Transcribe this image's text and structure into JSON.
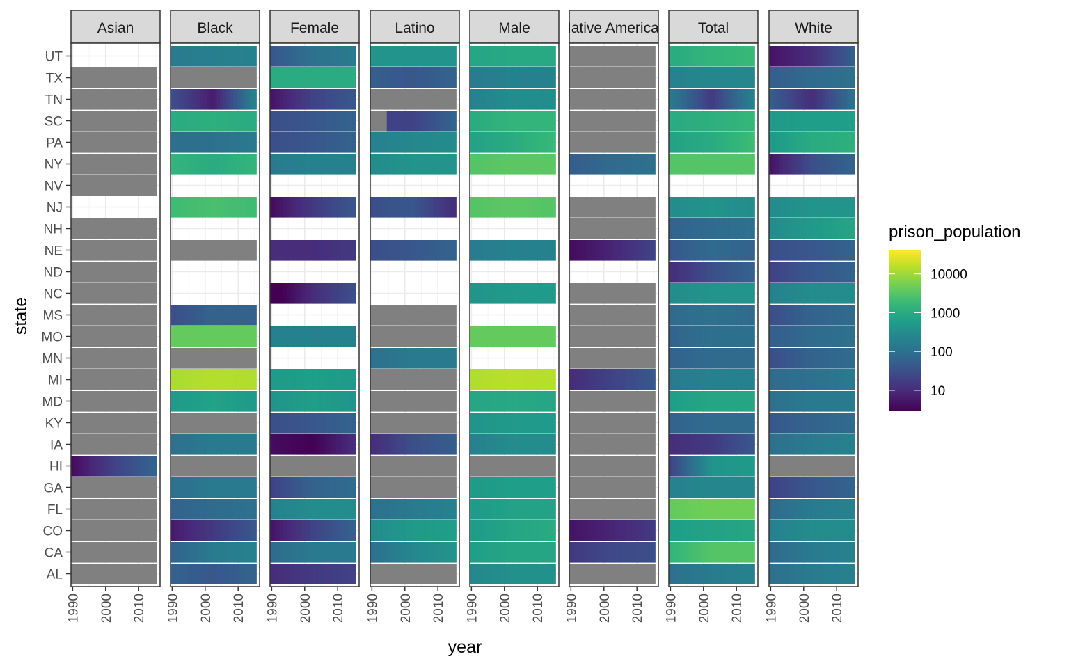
{
  "chart_data": {
    "type": "heatmap",
    "facet_by": "group",
    "x_axis": {
      "label": "year",
      "ticks": [
        1990,
        2000,
        2010
      ],
      "range": [
        1989.5,
        2016.5
      ]
    },
    "y_axis": {
      "label": "state",
      "categories": [
        "UT",
        "TX",
        "TN",
        "SC",
        "PA",
        "NY",
        "NV",
        "NJ",
        "NH",
        "NE",
        "ND",
        "NC",
        "MS",
        "MO",
        "MN",
        "MI",
        "MD",
        "KY",
        "IA",
        "HI",
        "GA",
        "FL",
        "CO",
        "CA",
        "AL"
      ]
    },
    "missing_color": "#808080",
    "grid": true,
    "legend": {
      "title": "prison_population",
      "position": "right",
      "scale": "log10",
      "domain": [
        3,
        40000
      ],
      "ticks": [
        10,
        100,
        1000,
        10000
      ],
      "tick_labels": [
        "10",
        "100",
        "1000",
        "10000"
      ],
      "palette": [
        "#440154",
        "#482878",
        "#3e4989",
        "#31688e",
        "#26828e",
        "#1f9e89",
        "#35b779",
        "#6ece58",
        "#b5de2b",
        "#fde725"
      ]
    },
    "facets": [
      {
        "name": "Asian",
        "year_range": [
          1990,
          2015
        ],
        "rows": {
          "UT": null,
          "TX": "NA",
          "TN": "NA",
          "SC": "NA",
          "PA": "NA",
          "NY": "NA",
          "NV": "NA",
          "NJ": null,
          "NH": "NA",
          "NE": "NA",
          "ND": "NA",
          "NC": "NA",
          "MS": "NA",
          "MO": "NA",
          "MN": "NA",
          "MI": "NA",
          "MD": "NA",
          "KY": "NA",
          "IA": "NA",
          "HI": [
            4,
            20,
            60
          ],
          "GA": "NA",
          "FL": "NA",
          "CO": "NA",
          "CA": "NA",
          "AL": "NA"
        }
      },
      {
        "name": "Black",
        "year_range": [
          1990,
          2015
        ],
        "rows": {
          "UT": [
            150,
            180,
            200
          ],
          "TX": "NA",
          "TN": [
            30,
            6,
            200
          ],
          "SC": [
            1000,
            1200,
            1000
          ],
          "PA": [
            100,
            100,
            150
          ],
          "NY": [
            1500,
            1000,
            1500
          ],
          "NV": null,
          "NJ": [
            2000,
            2500,
            2000
          ],
          "NH": null,
          "NE": "NA",
          "ND": null,
          "NC": null,
          "MS": [
            30,
            60,
            60
          ],
          "MO": [
            4000,
            4000,
            4000
          ],
          "MN": "NA",
          "MI": [
            12000,
            14000,
            13000
          ],
          "MD": [
            500,
            700,
            500
          ],
          "KY": "NA",
          "IA": [
            100,
            150,
            150
          ],
          "HI": "NA",
          "GA": [
            100,
            150,
            150
          ],
          "FL": [
            60,
            80,
            100
          ],
          "CO": [
            6,
            15,
            40
          ],
          "CA": [
            60,
            150,
            200
          ],
          "AL": [
            60,
            40,
            60
          ]
        }
      },
      {
        "name": "Female",
        "year_range": [
          1990,
          2015
        ],
        "rows": {
          "UT": [
            40,
            100,
            150
          ],
          "TX": [
            1000,
            1000,
            1000
          ],
          "TN": [
            5,
            20,
            40
          ],
          "SC": [
            30,
            40,
            60
          ],
          "PA": [
            30,
            40,
            60
          ],
          "NY": [
            150,
            200,
            200
          ],
          "NV": null,
          "NJ": [
            4,
            15,
            40
          ],
          "NH": null,
          "NE": [
            10,
            10,
            15
          ],
          "ND": null,
          "NC": [
            2,
            10,
            30
          ],
          "MS": null,
          "MO": [
            200,
            200,
            200
          ],
          "MN": null,
          "MI": [
            500,
            600,
            500
          ],
          "MD": [
            400,
            600,
            400
          ],
          "KY": [
            30,
            40,
            60
          ],
          "IA": [
            4,
            3,
            10
          ],
          "HI": "NA",
          "GA": [
            20,
            60,
            80
          ],
          "FL": [
            200,
            300,
            300
          ],
          "CO": [
            5,
            20,
            60
          ],
          "CA": [
            80,
            150,
            150
          ],
          "AL": [
            10,
            15,
            20
          ]
        }
      },
      {
        "name": "Latino",
        "year_range": [
          1990,
          2015
        ],
        "rows": {
          "UT": [
            400,
            400,
            400
          ],
          "TX": [
            50,
            40,
            60
          ],
          "TN": "NA",
          "SC": [
            null,
            20,
            60
          ],
          "PA": [
            200,
            250,
            300
          ],
          "NY": [
            300,
            400,
            400
          ],
          "NV": null,
          "NJ": [
            30,
            40,
            10
          ],
          "NH": null,
          "NE": [
            30,
            40,
            60
          ],
          "ND": null,
          "NC": null,
          "MS": "NA",
          "MO": "NA",
          "MN": [
            100,
            150,
            150
          ],
          "MI": "NA",
          "MD": "NA",
          "KY": "NA",
          "IA": [
            10,
            30,
            50
          ],
          "HI": "NA",
          "GA": "NA",
          "FL": [
            100,
            150,
            200
          ],
          "CO": [
            300,
            500,
            600
          ],
          "CA": [
            100,
            250,
            400
          ],
          "AL": "NA"
        }
      },
      {
        "name": "Male",
        "year_range": [
          1990,
          2015
        ],
        "rows": {
          "UT": [
            800,
            900,
            900
          ],
          "TX": [
            150,
            200,
            200
          ],
          "TN": [
            200,
            300,
            300
          ],
          "SC": [
            1000,
            1500,
            1500
          ],
          "PA": [
            700,
            1000,
            1800
          ],
          "NY": [
            3000,
            3500,
            3500
          ],
          "NV": null,
          "NJ": [
            3000,
            3500,
            3000
          ],
          "NH": null,
          "NE": [
            150,
            200,
            200
          ],
          "ND": null,
          "NC": [
            400,
            500,
            500
          ],
          "MS": null,
          "MO": [
            4000,
            4000,
            4000
          ],
          "MN": null,
          "MI": [
            13000,
            15000,
            14000
          ],
          "MD": [
            800,
            900,
            800
          ],
          "KY": [
            400,
            500,
            500
          ],
          "IA": [
            200,
            300,
            300
          ],
          "HI": "NA",
          "GA": [
            500,
            600,
            600
          ],
          "FL": [
            500,
            700,
            700
          ],
          "CO": [
            500,
            800,
            1000
          ],
          "CA": [
            600,
            800,
            800
          ],
          "AL": [
            250,
            350,
            350
          ]
        }
      },
      {
        "name": "Native American",
        "year_range": [
          1990,
          2015
        ],
        "rows": {
          "UT": "NA",
          "TX": "NA",
          "TN": "NA",
          "SC": "NA",
          "PA": "NA",
          "NY": [
            50,
            80,
            100
          ],
          "NV": null,
          "NJ": "NA",
          "NH": "NA",
          "NE": [
            4,
            8,
            20
          ],
          "ND": null,
          "NC": "NA",
          "MS": "NA",
          "MO": "NA",
          "MN": "NA",
          "MI": [
            10,
            20,
            40
          ],
          "MD": "NA",
          "KY": "NA",
          "IA": "NA",
          "HI": "NA",
          "GA": "NA",
          "FL": "NA",
          "CO": [
            5,
            8,
            15
          ],
          "CA": [
            15,
            25,
            30
          ],
          "AL": "NA"
        }
      },
      {
        "name": "Total",
        "year_range": [
          1990,
          2015
        ],
        "rows": {
          "UT": [
            1000,
            1500,
            1800
          ],
          "TX": [
            200,
            250,
            250
          ],
          "TN": [
            150,
            15,
            200
          ],
          "SC": [
            1000,
            1200,
            1600
          ],
          "PA": [
            700,
            1000,
            2000
          ],
          "NY": [
            3000,
            3000,
            3000
          ],
          "NV": null,
          "NJ": [
            300,
            400,
            300
          ],
          "NH": [
            60,
            80,
            100
          ],
          "NE": [
            40,
            80,
            60
          ],
          "ND": [
            10,
            30,
            60
          ],
          "NC": [
            300,
            400,
            400
          ],
          "MS": [
            80,
            100,
            80
          ],
          "MO": [
            60,
            100,
            100
          ],
          "MN": [
            60,
            80,
            80
          ],
          "MI": [
            150,
            200,
            200
          ],
          "MD": [
            600,
            800,
            800
          ],
          "KY": [
            60,
            80,
            80
          ],
          "IA": [
            10,
            15,
            40
          ],
          "HI": [
            20,
            400,
            500
          ],
          "GA": [
            200,
            250,
            250
          ],
          "FL": [
            4000,
            5000,
            5000
          ],
          "CO": [
            600,
            700,
            800
          ],
          "CA": [
            1500,
            3000,
            3000
          ],
          "AL": [
            100,
            150,
            200
          ]
        }
      },
      {
        "name": "White",
        "year_range": [
          1990,
          2015
        ],
        "rows": {
          "UT": [
            5,
            10,
            50
          ],
          "TX": [
            50,
            80,
            100
          ],
          "TN": [
            50,
            10,
            100
          ],
          "SC": [
            500,
            600,
            600
          ],
          "PA": [
            500,
            1000,
            1200
          ],
          "NY": [
            5,
            30,
            60
          ],
          "NV": null,
          "NJ": [
            300,
            400,
            400
          ],
          "NH": [
            300,
            500,
            800
          ],
          "NE": [
            30,
            40,
            60
          ],
          "ND": [
            20,
            40,
            60
          ],
          "NC": [
            200,
            300,
            300
          ],
          "MS": [
            30,
            60,
            80
          ],
          "MO": [
            50,
            80,
            100
          ],
          "MN": [
            30,
            60,
            80
          ],
          "MI": [
            80,
            100,
            150
          ],
          "MD": [
            100,
            150,
            150
          ],
          "KY": [
            40,
            60,
            80
          ],
          "IA": [
            100,
            150,
            200
          ],
          "HI": "NA",
          "GA": [
            20,
            40,
            60
          ],
          "FL": [
            80,
            150,
            200
          ],
          "CO": [
            200,
            300,
            300
          ],
          "CA": [
            80,
            150,
            200
          ],
          "AL": [
            100,
            150,
            200
          ]
        }
      }
    ]
  }
}
